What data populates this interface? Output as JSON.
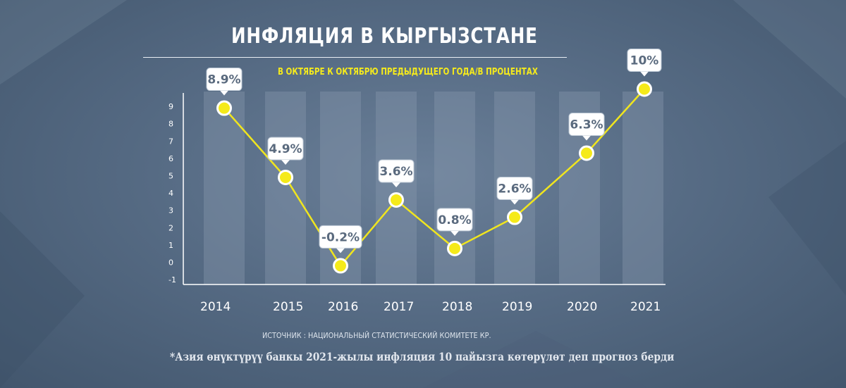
{
  "header": {
    "title": "ИНФЛЯЦИЯ В КЫРГЫЗСТАНЕ",
    "subtitle": "В ОКТЯБРЕ К ОКТЯБРЮ ПРЕДЫДУЩЕГО ГОДА/В ПРОЦЕНТАХ"
  },
  "footer": {
    "source": "ИСТОЧНИК : НАЦИОНАЛЬНЫЙ СТАТИСТИЧЕСКИЙ КОМИТЕТЕ КР.",
    "note": "*Азия өнүктүрүү банкы 2021-жылы инфляция 10 пайызга көтөрүлөт деп прогноз берди"
  },
  "colors": {
    "line": "#f0e51e",
    "marker_fill": "#f5ea1a",
    "marker_stroke": "#ffffff",
    "column": "#8597ac",
    "label_bg": "#ffffff",
    "label_text": "#5a6a7e"
  },
  "chart_data": {
    "type": "line",
    "categories": [
      "2014",
      "2015",
      "2016",
      "2017",
      "2018",
      "2019",
      "2020",
      "2021"
    ],
    "values": [
      8.9,
      4.9,
      -0.2,
      3.6,
      0.8,
      2.6,
      6.3,
      10
    ],
    "data_labels": [
      "8.9%",
      "4.9%",
      "-0.2%",
      "3.6%",
      "0.8%",
      "2.6%",
      "6.3%",
      "10%"
    ],
    "y_ticks": [
      "9",
      "8",
      "7",
      "6",
      "5",
      "4",
      "3",
      "2",
      "1",
      "0",
      "-1"
    ],
    "ylim": [
      -1,
      9
    ],
    "grid": false,
    "legend": "none"
  }
}
